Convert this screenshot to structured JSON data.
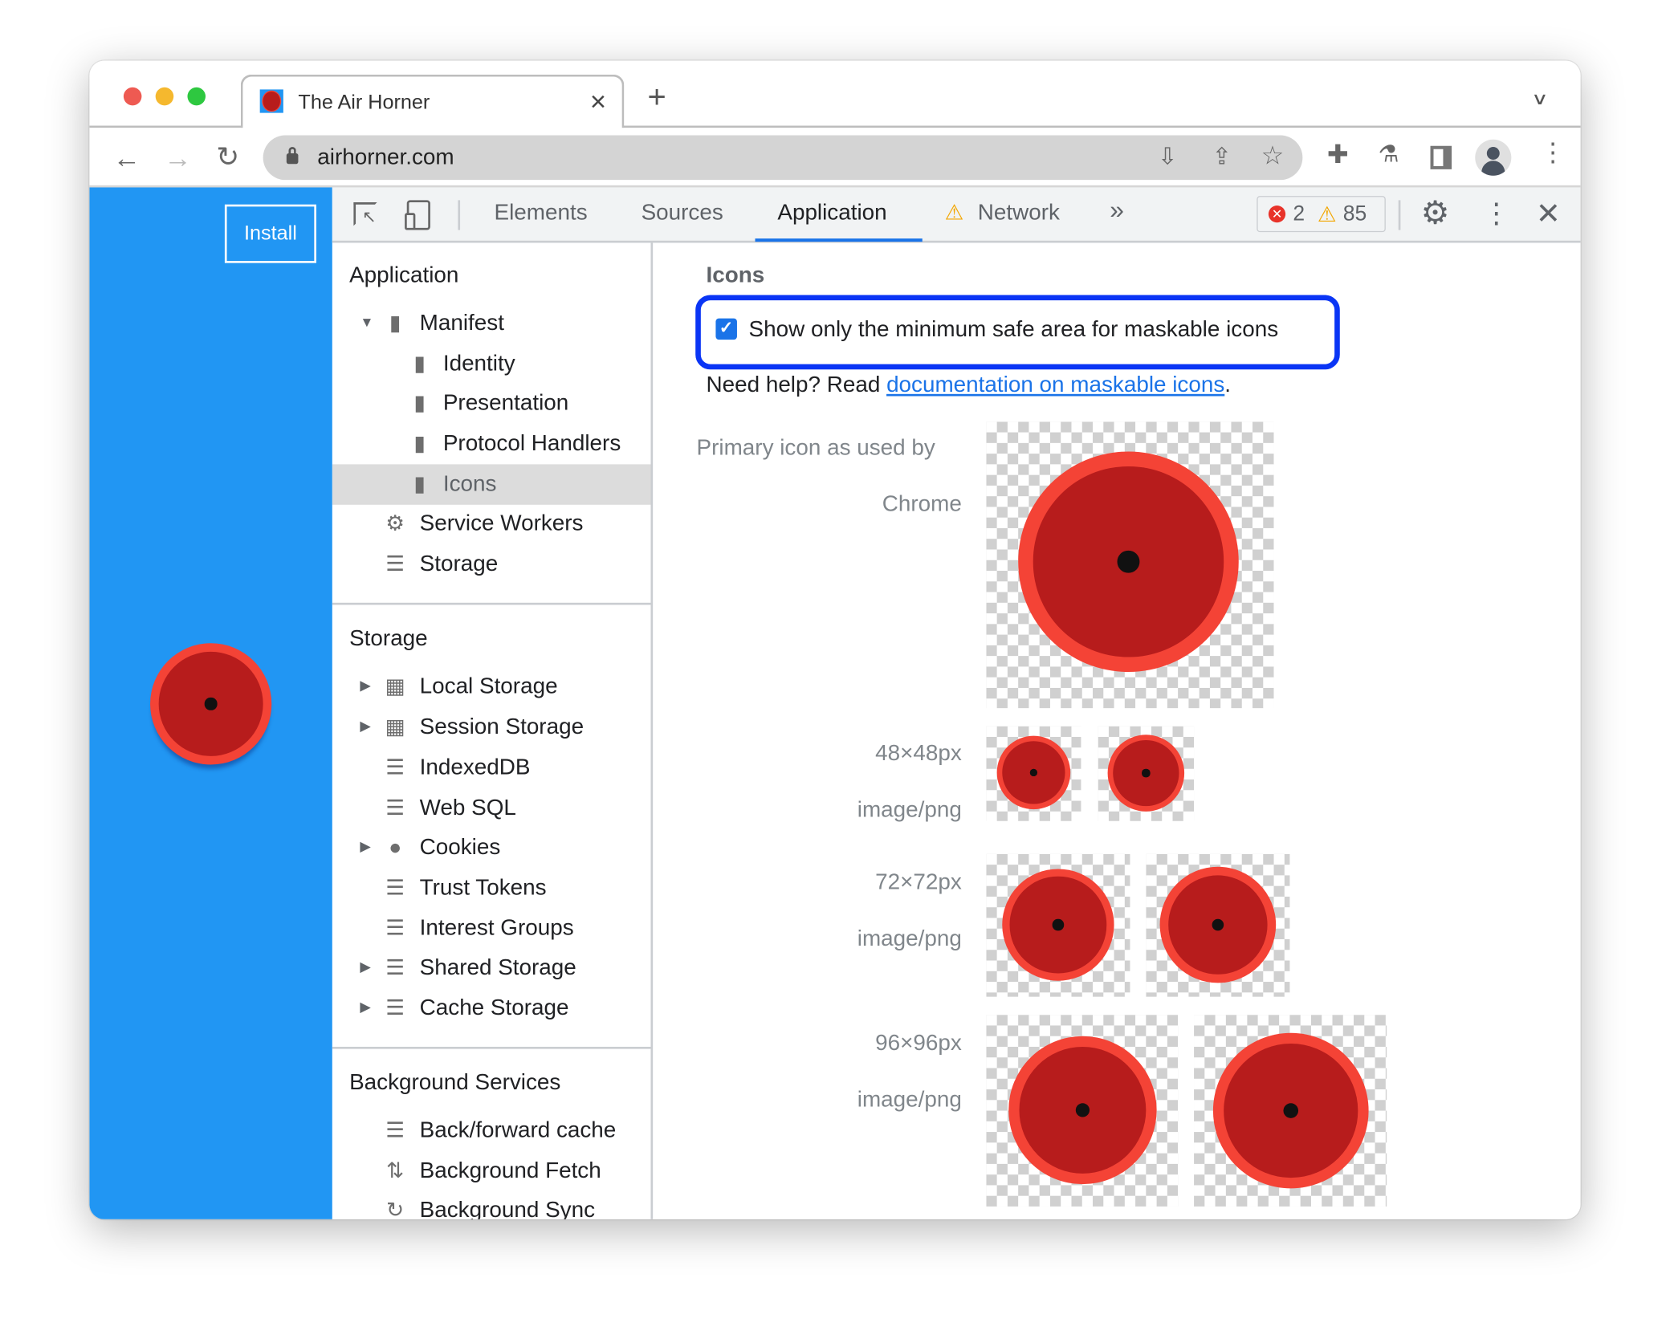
{
  "browser": {
    "tab_title": "The Air Horner",
    "url": "airhorner.com",
    "new_tab": "+",
    "close_tab": "×"
  },
  "page": {
    "install_label": "Install",
    "brand_color": "#2196f3"
  },
  "devtools": {
    "tabs": [
      {
        "label": "Elements"
      },
      {
        "label": "Sources"
      },
      {
        "label": "Application",
        "active": true
      },
      {
        "label": "Network",
        "warning": true
      }
    ],
    "more_tabs": "»",
    "errors": "2",
    "warnings": "85"
  },
  "sidebar": {
    "application": {
      "header": "Application",
      "items": [
        "Manifest",
        "Identity",
        "Presentation",
        "Protocol Handlers",
        "Icons",
        "Service Workers",
        "Storage"
      ]
    },
    "storage": {
      "header": "Storage",
      "items": [
        "Local Storage",
        "Session Storage",
        "IndexedDB",
        "Web SQL",
        "Cookies",
        "Trust Tokens",
        "Interest Groups",
        "Shared Storage",
        "Cache Storage"
      ]
    },
    "background": {
      "header": "Background Services",
      "items": [
        "Back/forward cache",
        "Background Fetch",
        "Background Sync"
      ]
    },
    "selected": "Icons"
  },
  "main": {
    "section_title": "Icons",
    "checkbox_label": "Show only the minimum safe area for maskable icons",
    "checkbox_checked": true,
    "help_prefix": "Need help? Read ",
    "help_link": "documentation on maskable icons",
    "help_suffix": ".",
    "primary_label_1": "Primary icon as used by",
    "primary_label_2": "Chrome",
    "icons": [
      {
        "size": "48×48px",
        "type": "image/png"
      },
      {
        "size": "72×72px",
        "type": "image/png"
      },
      {
        "size": "96×96px",
        "type": "image/png"
      }
    ],
    "highlight_color": "#0a35f5",
    "link_color": "#1a73e8"
  }
}
